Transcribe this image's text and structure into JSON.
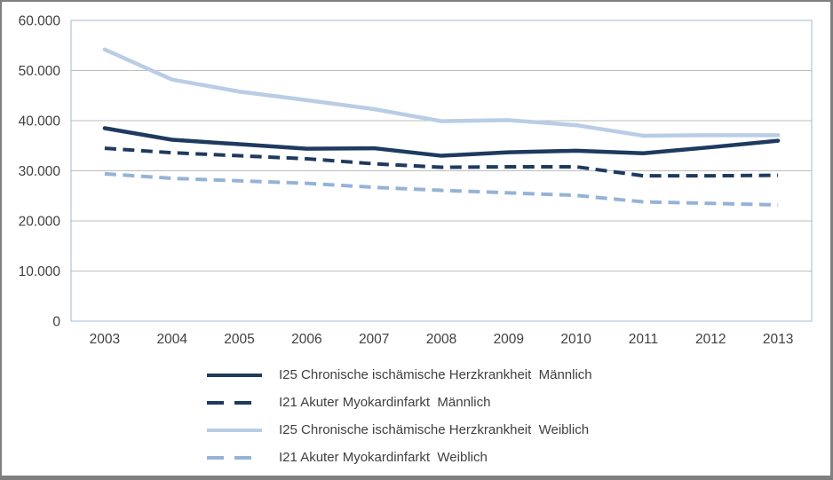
{
  "window": {
    "frame_color": "#7f7f7f",
    "background_color": "#ffffff"
  },
  "chart_data": {
    "type": "line",
    "title": "",
    "categories": [
      "2003",
      "2004",
      "2005",
      "2006",
      "2007",
      "2008",
      "2009",
      "2010",
      "2011",
      "2012",
      "2013"
    ],
    "series": [
      {
        "name": "I25 Chronische ischämische Herzkrankheit  Männlich",
        "color": "#1f3a5f",
        "dash": false,
        "values": [
          38500,
          36200,
          35300,
          34400,
          34500,
          33000,
          33700,
          34000,
          33500,
          34700,
          36000
        ]
      },
      {
        "name": "I21 Akuter Myokardinfarkt  Männlich",
        "color": "#1f3a5f",
        "dash": true,
        "values": [
          34500,
          33600,
          33000,
          32400,
          31400,
          30700,
          30800,
          30800,
          29000,
          29000,
          29100
        ]
      },
      {
        "name": "I25 Chronische ischämische Herzkrankheit  Weiblich",
        "color": "#b9cde5",
        "dash": false,
        "values": [
          54200,
          48200,
          45800,
          44100,
          42300,
          39900,
          40100,
          39100,
          37000,
          37100,
          37100
        ]
      },
      {
        "name": "I21 Akuter Myokardinfarkt  Weiblich",
        "color": "#95b3d7",
        "dash": true,
        "values": [
          29400,
          28500,
          28000,
          27500,
          26700,
          26100,
          25600,
          25100,
          23800,
          23500,
          23200
        ]
      }
    ],
    "x_axis": {
      "tick_labels": [
        "2003",
        "2004",
        "2005",
        "2006",
        "2007",
        "2008",
        "2009",
        "2010",
        "2011",
        "2012",
        "2013"
      ]
    },
    "y_axis": {
      "min": 0,
      "max": 60000,
      "tick_interval": 10000,
      "tick_labels": [
        "0",
        "10.000",
        "20.000",
        "30.000",
        "40.000",
        "50.000",
        "60.000"
      ]
    },
    "grid": true,
    "gridline_color": "#bdbdbd",
    "plot_border_color": "#a3b8d4",
    "axis_label_color": "#404040",
    "legend_position": "bottom-left"
  }
}
